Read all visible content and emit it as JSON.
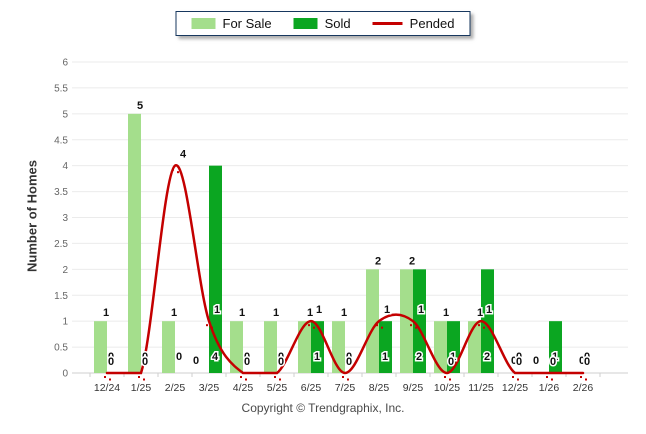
{
  "legend": {
    "items": [
      {
        "label": "For Sale",
        "swatch": "bar"
      },
      {
        "label": "Sold",
        "swatch": "bar"
      },
      {
        "label": "Pended",
        "swatch": "line"
      }
    ]
  },
  "footer": {
    "copyright": "Copyright © Trendgraphix, Inc."
  },
  "chart_data": {
    "type": "bar",
    "title": "",
    "xlabel": "",
    "ylabel": "Number of Homes",
    "ylim": [
      0,
      6
    ],
    "ytick_step": 0.5,
    "grid": true,
    "legend_position": "top",
    "categories": [
      "12/24",
      "1/25",
      "2/25",
      "3/25",
      "4/25",
      "5/25",
      "6/25",
      "7/25",
      "8/25",
      "9/25",
      "10/25",
      "11/25",
      "12/25",
      "1/26",
      "2/26"
    ],
    "series": [
      {
        "name": "For Sale",
        "type": "bar",
        "color": "#A4DE8C",
        "values": [
          1,
          5,
          1,
          0,
          1,
          1,
          1,
          1,
          2,
          2,
          1,
          1,
          0,
          0,
          0
        ]
      },
      {
        "name": "Sold",
        "type": "bar",
        "color": "#0BA621",
        "values": [
          0,
          0,
          0,
          4,
          0,
          0,
          1,
          0,
          1,
          2,
          1,
          2,
          0,
          1,
          0
        ]
      },
      {
        "name": "Pended",
        "type": "line",
        "color": "#C40000",
        "values": [
          0,
          0,
          4,
          1,
          0,
          0,
          1,
          0,
          1,
          1,
          0,
          1,
          0,
          0,
          0
        ]
      }
    ],
    "colors": {
      "gridline": "#ebebeb",
      "baseline": "#cfcfcf",
      "legend_border": "#17375E"
    }
  }
}
